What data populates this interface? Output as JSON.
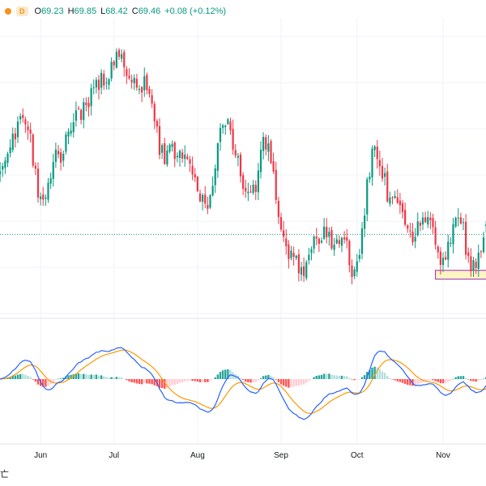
{
  "legend": {
    "status_color": "#f7931a",
    "timeframe": "D",
    "open_label": "O",
    "open": "69.23",
    "high_label": "H",
    "high": "69.85",
    "low_label": "L",
    "low": "68.42",
    "close_label": "C",
    "close": "69.46",
    "change": "+0.08 (+0.12%)",
    "value_color": "#089981"
  },
  "corner_char": "亡",
  "colors": {
    "up": "#089981",
    "down": "#f23645",
    "macd_line": "#2962ff",
    "signal_line": "#ff9800",
    "hist_up_strong": "#26a69a",
    "hist_up_weak": "#b2dfdb",
    "hist_down_strong": "#ff5252",
    "hist_down_weak": "#ffcdd2",
    "grid": "#f0f3fa",
    "dotted_level": "#089981",
    "highlight_fill": "#fff3c4",
    "highlight_border": "#9c27b0"
  },
  "chart_data": [
    {
      "type": "candlestick",
      "x_axis": {
        "labels": [
          "Jun",
          "Jul",
          "Aug",
          "Sep",
          "Oct",
          "Nov"
        ],
        "label_positions_bar_index": [
          17,
          46,
          79,
          112,
          142,
          176
        ]
      },
      "y_axis_shown": false,
      "grid": true,
      "last_bar": {
        "open": 69.23,
        "high": 69.85,
        "low": 68.42,
        "close": 69.46,
        "change": 0.08,
        "change_pct": 0.12
      },
      "close_path_keypoints": [
        {
          "bar": 0,
          "close": 76
        },
        {
          "bar": 5,
          "close": 80
        },
        {
          "bar": 11,
          "close": 83
        },
        {
          "bar": 17,
          "close": 73
        },
        {
          "bar": 24,
          "close": 78
        },
        {
          "bar": 31,
          "close": 83
        },
        {
          "bar": 40,
          "close": 87
        },
        {
          "bar": 47,
          "close": 90
        },
        {
          "bar": 58,
          "close": 87
        },
        {
          "bar": 66,
          "close": 78
        },
        {
          "bar": 74,
          "close": 79
        },
        {
          "bar": 82,
          "close": 72
        },
        {
          "bar": 90,
          "close": 82
        },
        {
          "bar": 100,
          "close": 73
        },
        {
          "bar": 106,
          "close": 80
        },
        {
          "bar": 113,
          "close": 67
        },
        {
          "bar": 120,
          "close": 64
        },
        {
          "bar": 127,
          "close": 68
        },
        {
          "bar": 137,
          "close": 67
        },
        {
          "bar": 141,
          "close": 63
        },
        {
          "bar": 149,
          "close": 79
        },
        {
          "bar": 156,
          "close": 72
        },
        {
          "bar": 164,
          "close": 68
        },
        {
          "bar": 170,
          "close": 71
        },
        {
          "bar": 175,
          "close": 64
        },
        {
          "bar": 182,
          "close": 71
        },
        {
          "bar": 187,
          "close": 64
        },
        {
          "bar": 193,
          "close": 68
        }
      ],
      "dotted_level_close": 68.2,
      "highlight_zone": {
        "from_bar": 173,
        "to_bar": 193,
        "low": 62.6,
        "high": 63.7
      }
    },
    {
      "type": "macd",
      "series": [
        {
          "name": "",
          "kind": "histogram"
        },
        {
          "name": "",
          "kind": "line",
          "role": "macd"
        },
        {
          "name": "",
          "kind": "line",
          "role": "signal"
        }
      ]
    }
  ]
}
